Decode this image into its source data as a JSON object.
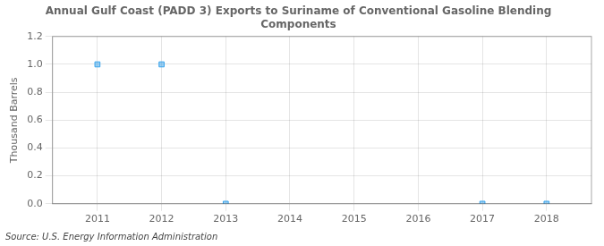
{
  "chart_data": {
    "type": "scatter",
    "title": "Annual Gulf Coast (PADD 3) Exports to Suriname of Conventional Gasoline Blending\nComponents",
    "ylabel": "Thousand Barrels",
    "annotations": [
      "Source: U.S. Energy Information Administration"
    ],
    "x": [
      2011,
      2012,
      2013,
      2017,
      2018
    ],
    "values": [
      1.0,
      1.0,
      0.0,
      0.0,
      0.0
    ],
    "marker": "square",
    "xlim": [
      2010.3,
      2018.7
    ],
    "xticks": [
      2011,
      2012,
      2013,
      2014,
      2015,
      2016,
      2017,
      2018
    ],
    "ylim": [
      0.0,
      1.2
    ],
    "yticks": [
      {
        "value": 0.0,
        "label": "0.0"
      },
      0.2,
      0.4,
      0.6,
      0.8,
      {
        "value": 1.0,
        "label": "1.0"
      },
      1.2
    ],
    "grid": true
  }
}
